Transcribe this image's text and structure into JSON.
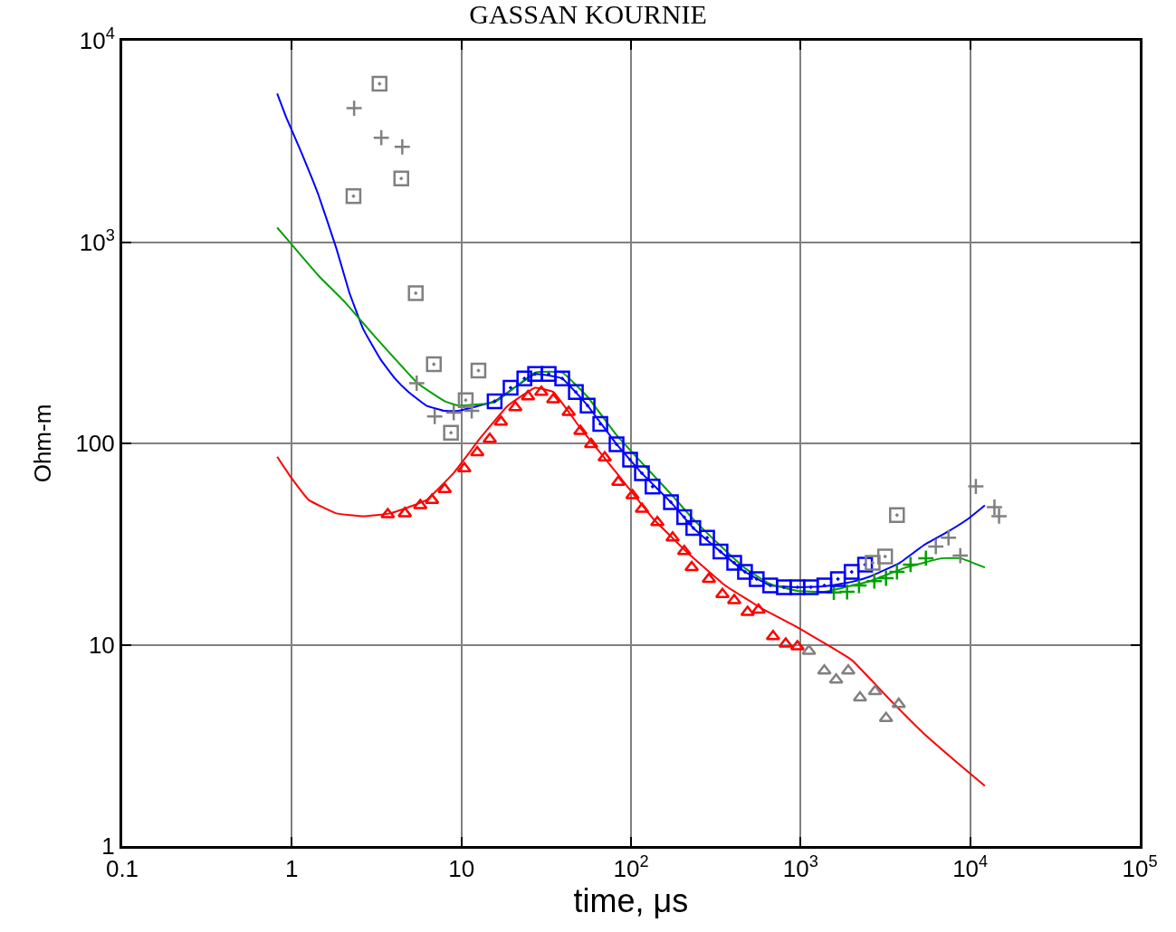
{
  "chart_data": {
    "type": "scatter",
    "title": "GASSAN KOURNIE",
    "xlabel": "time, μs",
    "ylabel": "Ohm-m",
    "log": "xy",
    "grid": true,
    "xlim": [
      0.1,
      100000
    ],
    "ylim": [
      1,
      10000
    ],
    "xticks": [
      0.1,
      1,
      10,
      {
        "value": 100,
        "label": "10$^{2}$"
      },
      {
        "value": 1000,
        "label": "10$^{3}$"
      },
      {
        "value": 10000,
        "label": "10$^{4}$"
      },
      {
        "value": 100000,
        "label": "10$^{5}$"
      }
    ],
    "yticks": [
      1,
      10,
      100,
      {
        "value": 1000,
        "label": "10$^{3}$"
      },
      {
        "value": 10000,
        "label": "10$^{4}$"
      }
    ],
    "series": [
      {
        "type": "line",
        "color": "#0000ff",
        "marker": "none",
        "x": [
          0.82,
          0.93,
          1.12,
          1.43,
          1.83,
          2.19,
          2.64,
          3.37,
          4.06,
          4.88,
          6.23,
          7.97,
          9.58,
          15.7,
          27.2,
          39.3,
          55.5,
          82.2,
          116,
          172,
          233,
          337,
          470,
          662,
          958,
          1380,
          2000,
          2560,
          3840,
          5350,
          7450,
          9880,
          12200
        ],
        "values": [
          5460,
          4130,
          2880,
          1730,
          931,
          557,
          369,
          258,
          210,
          180,
          154,
          145,
          145,
          162,
          221,
          210,
          154,
          99,
          71,
          51,
          38,
          29,
          23,
          19.7,
          19.3,
          19.5,
          20.5,
          21.8,
          25.5,
          31.3,
          36.6,
          42.6,
          49.2
        ]
      },
      {
        "type": "line",
        "color": "#00a000",
        "marker": "none",
        "x": [
          0.82,
          0.99,
          1.43,
          2.06,
          2.98,
          4.06,
          5.51,
          7.97,
          9.58,
          15.7,
          27.2,
          39.3,
          55.5,
          82.2,
          116,
          172,
          233,
          337,
          470,
          662,
          958,
          1380,
          1570,
          2560,
          4180,
          6840,
          8740,
          12200
        ],
        "values": [
          1180,
          980,
          684,
          502,
          351,
          263,
          199,
          162,
          154,
          160,
          225,
          225,
          170,
          110,
          80,
          56,
          42,
          31,
          24,
          20,
          18.5,
          18.3,
          18.7,
          20.7,
          24.2,
          26.9,
          26.9,
          24.2
        ]
      },
      {
        "type": "line",
        "color": "#ff0000",
        "marker": "none",
        "x": [
          0.82,
          0.99,
          1.26,
          1.83,
          2.64,
          3.81,
          6.23,
          9.01,
          13.0,
          18.8,
          27.2,
          34.8,
          50.3,
          82.2,
          134,
          219,
          359,
          586,
          958,
          2000,
          3270,
          5350,
          8740,
          12200
        ],
        "values": [
          85.8,
          67.7,
          52.3,
          44.9,
          43.5,
          44.9,
          52.3,
          71.3,
          107,
          154,
          189,
          180,
          119,
          71.3,
          42.6,
          28.3,
          19.7,
          15.2,
          12.2,
          8.4,
          5.46,
          3.61,
          2.52,
          1.99
        ]
      },
      {
        "color": "#00a000",
        "marker": "cross",
        "x": [
          1570,
          1880,
          2210,
          2720,
          3190,
          3700,
          4450,
          5480
        ],
        "values": [
          18.2,
          18.3,
          19.7,
          20.7,
          21.4,
          23,
          25,
          26.9
        ]
      },
      {
        "color": "#0000ff",
        "marker": "square",
        "x": [
          15.7,
          19.5,
          23.5,
          27.2,
          32.7,
          39.3,
          47.3,
          55.5,
          65.9,
          82.2,
          98.8,
          116,
          134,
          172,
          206,
          233,
          281,
          337,
          406,
          470,
          551,
          662,
          797,
          958,
          1150,
          1380,
          1660,
          2000,
          2400
        ],
        "values": [
          162,
          189,
          210,
          221,
          221,
          210,
          180,
          154,
          125,
          99,
          83,
          71,
          61,
          51,
          43,
          38,
          34,
          29,
          25.5,
          23,
          21.2,
          19.7,
          19.3,
          19.3,
          19.3,
          19.7,
          21.2,
          23,
          25
        ]
      },
      {
        "color": "#ff0000",
        "marker": "triangle",
        "x": [
          3.68,
          4.64,
          5.72,
          6.71,
          7.97,
          10.4,
          12.4,
          14.7,
          17.1,
          20.8,
          24.7,
          29.6,
          34.8,
          42.9,
          50.3,
          58.2,
          70.0,
          84.2,
          102,
          116,
          143,
          176,
          206,
          228,
          288,
          346,
          406,
          487,
          565,
          688,
          817,
          958
        ],
        "values": [
          44.4,
          44.9,
          49.2,
          52.3,
          59.2,
          75.0,
          90.2,
          105,
          128,
          151,
          171,
          180,
          165,
          143,
          115,
          99,
          84.9,
          64.3,
          55.1,
          47.2,
          40.5,
          34.0,
          29.1,
          24.2,
          21.2,
          17.8,
          16.6,
          14.5,
          14.9,
          11.0,
          10.1,
          9.8
        ]
      },
      {
        "color": "#808080",
        "marker": "triangle",
        "x": [
          1120,
          1380,
          1620,
          1910,
          2240,
          2750,
          3190,
          3790
        ],
        "values": [
          9.31,
          7.43,
          6.7,
          7.43,
          5.46,
          5.87,
          4.31,
          5.07
        ]
      },
      {
        "color": "#808080",
        "marker": "cross",
        "x": [
          2.33,
          3.37,
          4.48,
          5.45,
          6.96,
          9.01,
          11.5,
          6270,
          7450,
          8740,
          10800,
          13900,
          14800
        ],
        "values": [
          4620,
          3300,
          2970,
          199,
          136,
          142,
          145,
          30.7,
          34.0,
          27.7,
          61.1,
          48.2,
          43.5
        ]
      },
      {
        "color": "#808080",
        "marker": "square",
        "x": [
          2.31,
          3.29,
          4.42
        ],
        "values": [
          1690,
          6110,
          2070
        ]
      },
      {
        "color": "#808080",
        "marker": "square",
        "x": [
          5.38,
          6.88,
          8.68,
          10.6,
          12.6,
          2660,
          3150,
          3700
        ],
        "values": [
          557,
          247,
          113,
          164,
          230,
          25.5,
          27.4,
          44.0
        ]
      }
    ]
  }
}
